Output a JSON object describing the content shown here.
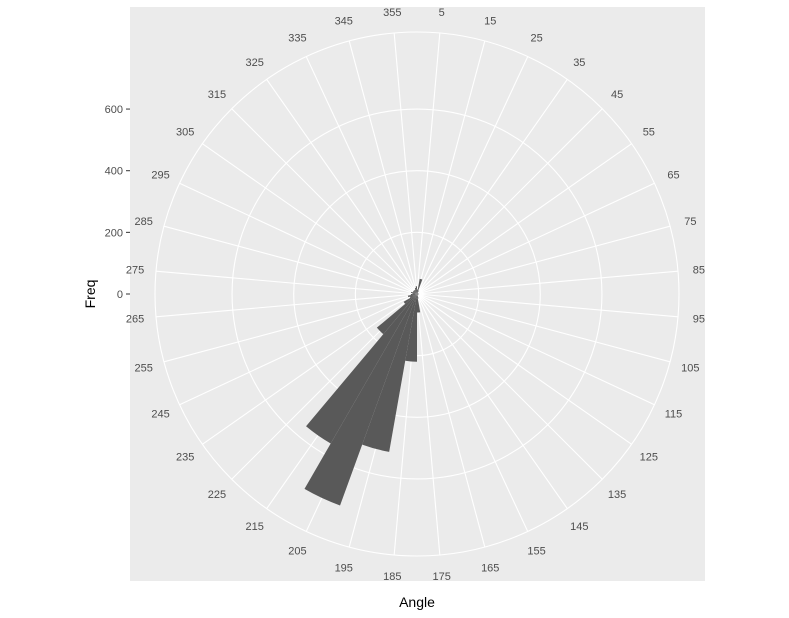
{
  "chart_data": {
    "type": "bar",
    "coord": "polar",
    "xlabel": "Angle",
    "ylabel": "Freq",
    "x_ticks": [
      5,
      15,
      25,
      35,
      45,
      55,
      65,
      75,
      85,
      95,
      105,
      115,
      125,
      135,
      145,
      155,
      165,
      175,
      185,
      195,
      205,
      215,
      225,
      235,
      245,
      255,
      265,
      275,
      285,
      295,
      305,
      315,
      325,
      335,
      345,
      355
    ],
    "y_ticks": [
      0,
      200,
      400,
      600
    ],
    "y_tick_labels": [
      "0",
      "200",
      "400",
      "600"
    ],
    "ylim": [
      0,
      850
    ],
    "bar_width_deg": 10,
    "categories": [
      5,
      15,
      25,
      35,
      45,
      55,
      65,
      75,
      85,
      95,
      105,
      115,
      125,
      135,
      145,
      155,
      165,
      175,
      185,
      195,
      205,
      215,
      225,
      235,
      245,
      255,
      265,
      275,
      285,
      295,
      305,
      315,
      325,
      335,
      345,
      355
    ],
    "values": [
      15,
      50,
      12,
      5,
      5,
      5,
      5,
      5,
      5,
      5,
      5,
      5,
      5,
      5,
      5,
      5,
      15,
      60,
      220,
      520,
      730,
      560,
      170,
      50,
      25,
      30,
      20,
      15,
      20,
      15,
      15,
      15,
      15,
      15,
      20,
      25
    ],
    "colors": {
      "panel": "#ebebeb",
      "grid": "#ffffff",
      "bar": "#595959",
      "tick_text": "#4d4d4d",
      "title_text": "#000000"
    }
  }
}
